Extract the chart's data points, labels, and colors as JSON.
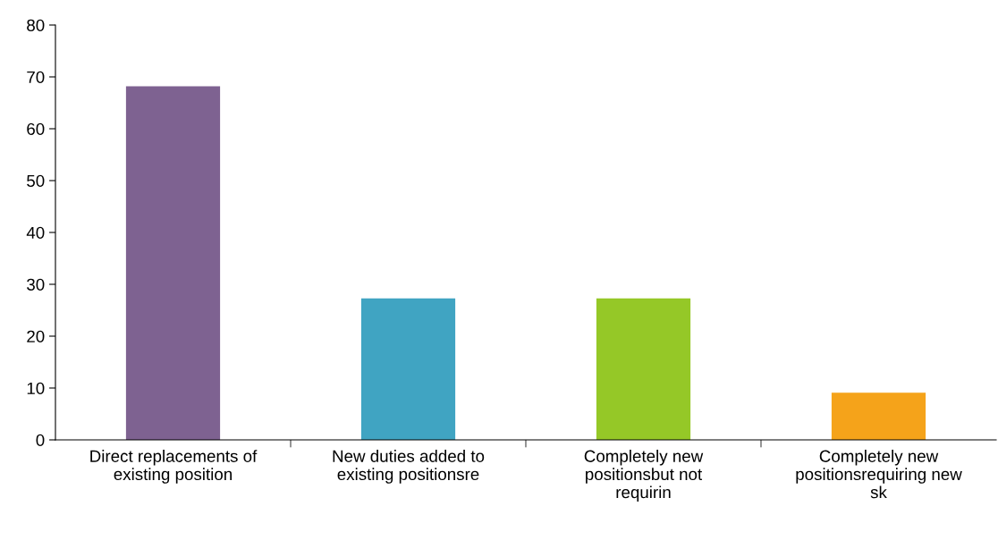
{
  "chart_data": {
    "type": "bar",
    "categories": [
      "Direct replacements of\nexisting position",
      "New duties added to\nexisting positionsre",
      "Completely new\npositionsbut not\nrequirin",
      "Completely new\npositionsrequiring new\nsk"
    ],
    "values": [
      68.2,
      27.3,
      27.3,
      9.1
    ],
    "colors": [
      "#7e6291",
      "#40a4c2",
      "#95c827",
      "#f5a31a"
    ],
    "ylim": [
      0,
      80
    ],
    "yticks": [
      0,
      10,
      20,
      30,
      40,
      50,
      60,
      70,
      80
    ],
    "grid": false
  }
}
